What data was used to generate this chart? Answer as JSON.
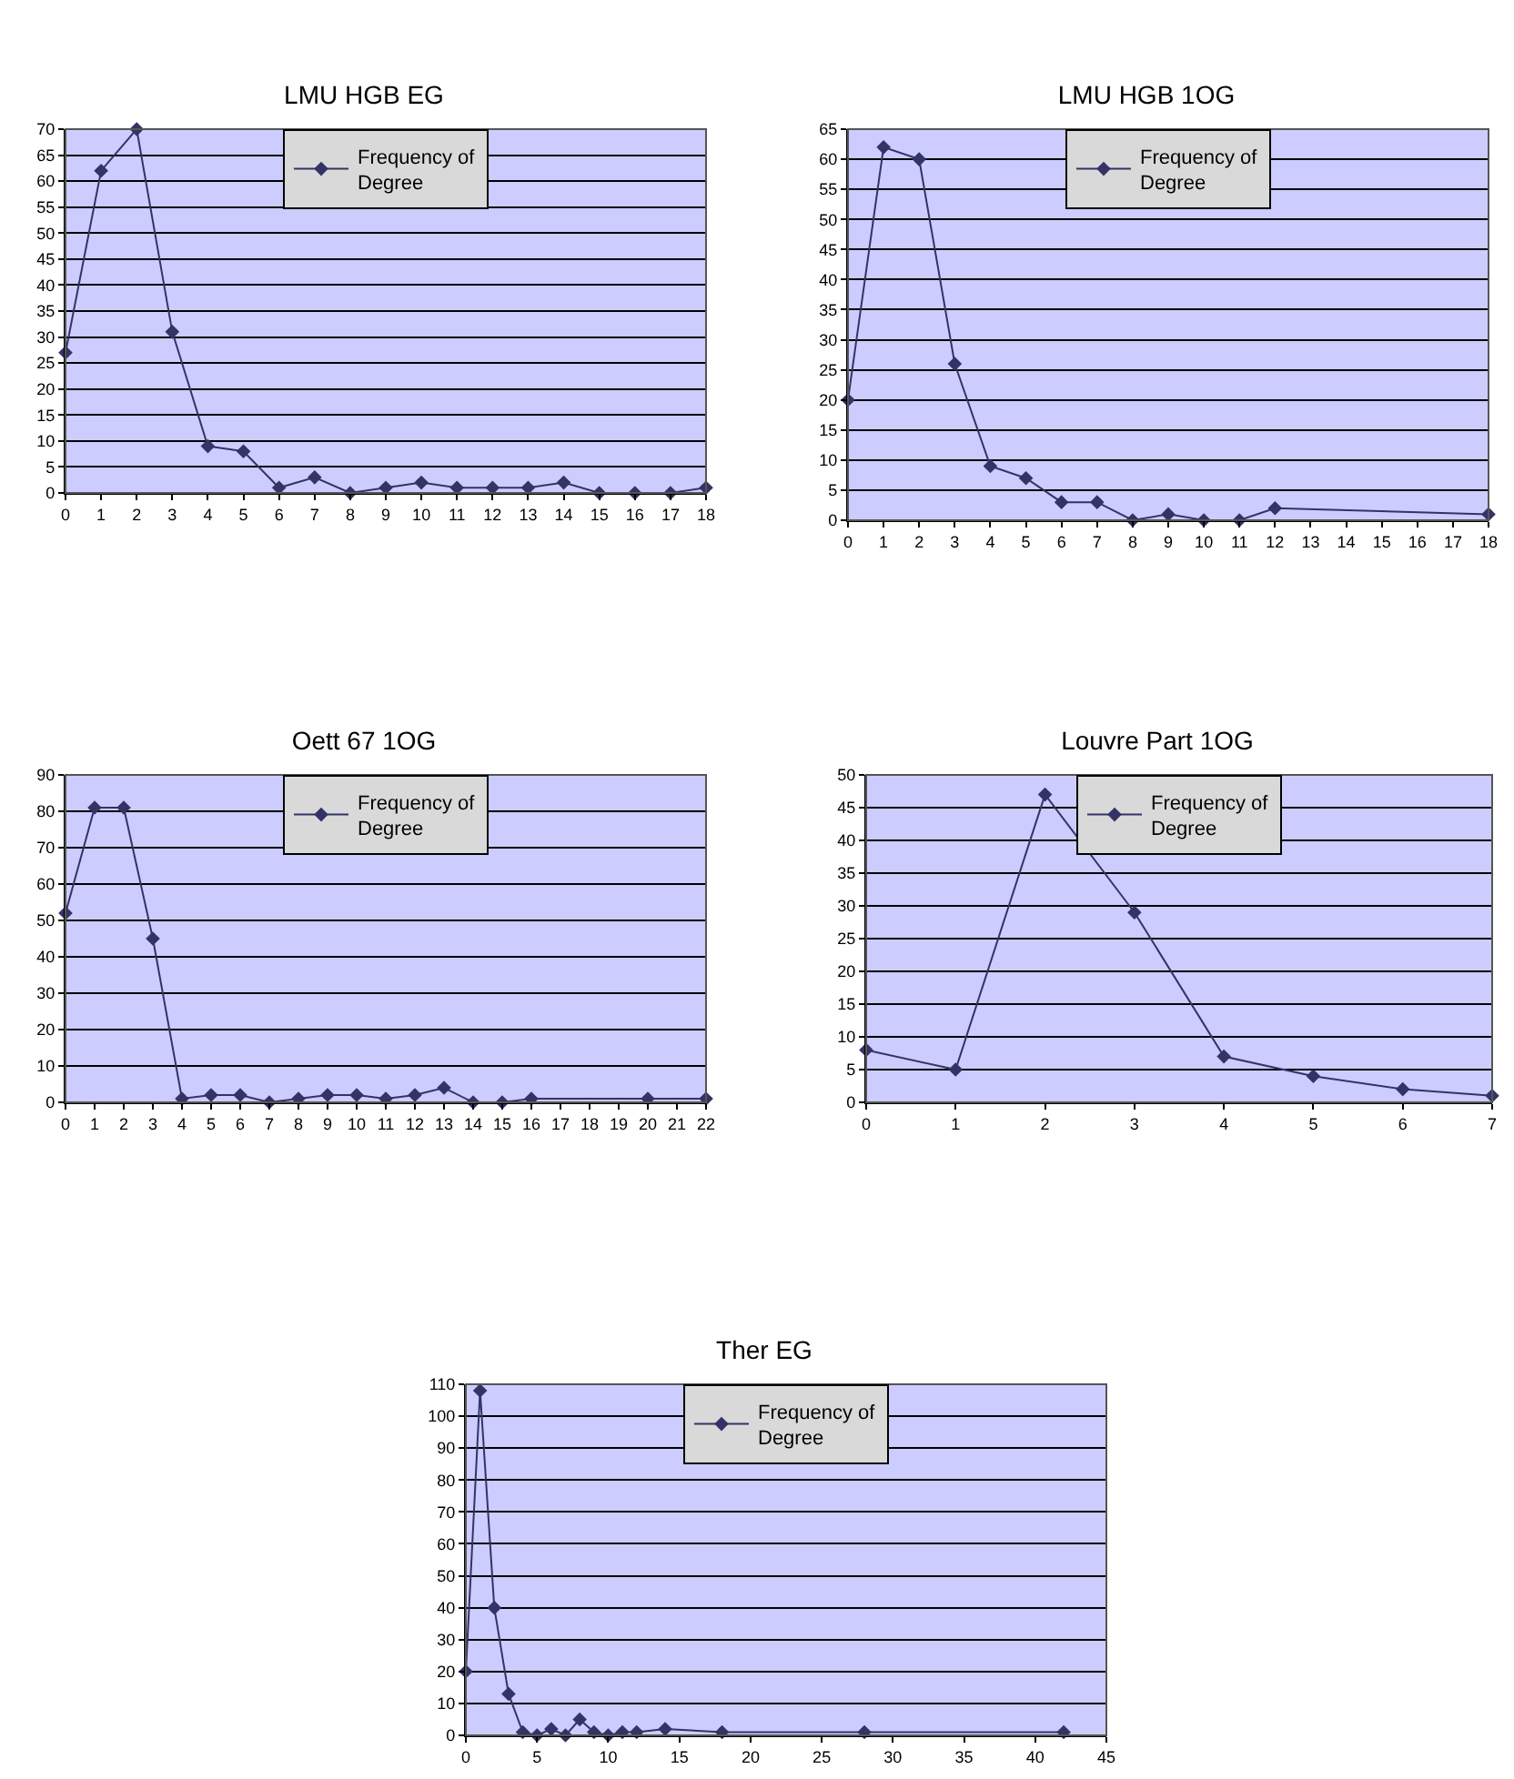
{
  "chart_data": [
    {
      "type": "line",
      "title": "LMU HGB EG",
      "x": [
        0,
        1,
        2,
        3,
        4,
        5,
        6,
        7,
        8,
        9,
        10,
        11,
        12,
        13,
        14,
        15,
        16,
        17,
        18
      ],
      "series": [
        {
          "name": "Frequency of Degree",
          "color": "#333366",
          "values": [
            27,
            62,
            70,
            31,
            9,
            8,
            1,
            3,
            0,
            1,
            2,
            1,
            1,
            1,
            2,
            0,
            0,
            0,
            1
          ]
        }
      ],
      "xlim": [
        0,
        18
      ],
      "xticks": [
        0,
        1,
        2,
        3,
        4,
        5,
        6,
        7,
        8,
        9,
        10,
        11,
        12,
        13,
        14,
        15,
        16,
        17,
        18
      ],
      "ylim": [
        0,
        70
      ],
      "yticks": [
        0,
        5,
        10,
        15,
        20,
        25,
        30,
        35,
        40,
        45,
        50,
        55,
        60,
        65,
        70
      ],
      "grid": "y",
      "legend": "top",
      "marker": "diamond"
    },
    {
      "type": "line",
      "title": "LMU HGB 1OG",
      "x": [
        0,
        1,
        2,
        3,
        4,
        5,
        6,
        7,
        8,
        9,
        10,
        11,
        12,
        18
      ],
      "series": [
        {
          "name": "Frequency of Degree",
          "color": "#333366",
          "values": [
            20,
            62,
            60,
            26,
            9,
            7,
            3,
            3,
            0,
            1,
            0,
            0,
            2,
            1
          ]
        }
      ],
      "xlim": [
        0,
        18
      ],
      "xticks": [
        0,
        1,
        2,
        3,
        4,
        5,
        6,
        7,
        8,
        9,
        10,
        11,
        12,
        13,
        14,
        15,
        16,
        17,
        18
      ],
      "ylim": [
        0,
        65
      ],
      "yticks": [
        0,
        5,
        10,
        15,
        20,
        25,
        30,
        35,
        40,
        45,
        50,
        55,
        60,
        65
      ],
      "grid": "y",
      "legend": "top",
      "marker": "diamond"
    },
    {
      "type": "line",
      "title": "Oett 67 1OG",
      "x": [
        0,
        1,
        2,
        3,
        4,
        5,
        6,
        7,
        8,
        9,
        10,
        11,
        12,
        13,
        14,
        15,
        16,
        20,
        22
      ],
      "series": [
        {
          "name": "Frequency of Degree",
          "color": "#333366",
          "values": [
            52,
            81,
            81,
            45,
            1,
            2,
            2,
            0,
            1,
            2,
            2,
            1,
            2,
            4,
            0,
            0,
            1,
            1,
            1
          ]
        }
      ],
      "xlim": [
        0,
        22
      ],
      "xticks": [
        0,
        1,
        2,
        3,
        4,
        5,
        6,
        7,
        8,
        9,
        10,
        11,
        12,
        13,
        14,
        15,
        16,
        17,
        18,
        19,
        20,
        21,
        22
      ],
      "ylim": [
        0,
        90
      ],
      "yticks": [
        0,
        10,
        20,
        30,
        40,
        50,
        60,
        70,
        80,
        90
      ],
      "grid": "y",
      "legend": "top",
      "marker": "diamond"
    },
    {
      "type": "line",
      "title": "Louvre Part 1OG",
      "x": [
        0,
        1,
        2,
        3,
        4,
        5,
        6,
        7
      ],
      "series": [
        {
          "name": "Frequency of Degree",
          "color": "#333366",
          "values": [
            8,
            5,
            47,
            29,
            7,
            4,
            2,
            1
          ]
        }
      ],
      "xlim": [
        0,
        7
      ],
      "xticks": [
        0,
        1,
        2,
        3,
        4,
        5,
        6,
        7
      ],
      "ylim": [
        0,
        50
      ],
      "yticks": [
        0,
        5,
        10,
        15,
        20,
        25,
        30,
        35,
        40,
        45,
        50
      ],
      "grid": "y",
      "legend": "top",
      "marker": "diamond"
    },
    {
      "type": "line",
      "title": "Ther EG",
      "x": [
        0,
        1,
        2,
        3,
        4,
        5,
        6,
        7,
        8,
        9,
        10,
        11,
        12,
        14,
        18,
        28,
        42
      ],
      "series": [
        {
          "name": "Frequency of Degree",
          "color": "#333366",
          "values": [
            20,
            108,
            40,
            13,
            1,
            0,
            2,
            0,
            5,
            1,
            0,
            1,
            1,
            2,
            1,
            1,
            1
          ]
        }
      ],
      "xlim": [
        0,
        45
      ],
      "xticks": [
        0,
        5,
        10,
        15,
        20,
        25,
        30,
        35,
        40,
        45
      ],
      "ylim": [
        0,
        110
      ],
      "yticks": [
        0,
        10,
        20,
        30,
        40,
        50,
        60,
        70,
        80,
        90,
        100,
        110
      ],
      "grid": "y",
      "legend": "top",
      "marker": "diamond"
    }
  ]
}
